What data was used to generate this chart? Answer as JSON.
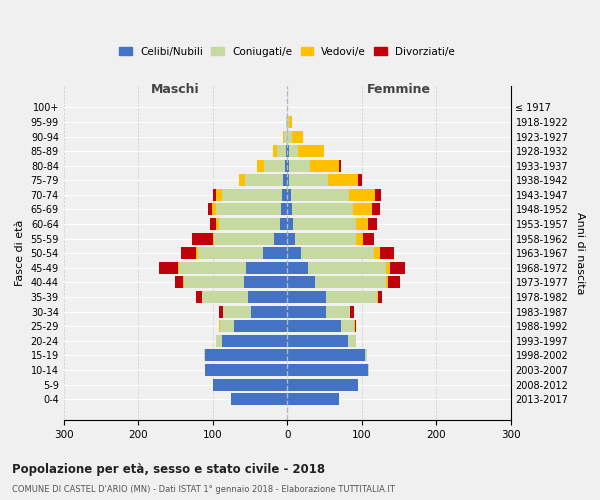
{
  "age_groups": [
    "0-4",
    "5-9",
    "10-14",
    "15-19",
    "20-24",
    "25-29",
    "30-34",
    "35-39",
    "40-44",
    "45-49",
    "50-54",
    "55-59",
    "60-64",
    "65-69",
    "70-74",
    "75-79",
    "80-84",
    "85-89",
    "90-94",
    "95-99",
    "100+"
  ],
  "birth_years": [
    "2013-2017",
    "2008-2012",
    "2003-2007",
    "1998-2002",
    "1993-1997",
    "1988-1992",
    "1983-1987",
    "1978-1982",
    "1973-1977",
    "1968-1972",
    "1963-1967",
    "1958-1962",
    "1953-1957",
    "1948-1952",
    "1943-1947",
    "1938-1942",
    "1933-1937",
    "1928-1932",
    "1923-1927",
    "1918-1922",
    "≤ 1917"
  ],
  "male": {
    "celibi": [
      75,
      100,
      110,
      110,
      88,
      72,
      48,
      52,
      58,
      55,
      32,
      18,
      10,
      8,
      7,
      5,
      3,
      2,
      0,
      0,
      0
    ],
    "coniugati": [
      0,
      0,
      0,
      2,
      8,
      18,
      38,
      62,
      80,
      90,
      88,
      80,
      82,
      88,
      80,
      52,
      28,
      12,
      4,
      2,
      0
    ],
    "vedovi": [
      0,
      0,
      0,
      0,
      0,
      2,
      0,
      1,
      2,
      2,
      2,
      2,
      3,
      5,
      8,
      8,
      10,
      5,
      2,
      0,
      0
    ],
    "divorziati": [
      0,
      0,
      0,
      0,
      0,
      0,
      5,
      8,
      10,
      25,
      20,
      28,
      8,
      5,
      5,
      0,
      0,
      0,
      0,
      0,
      0
    ]
  },
  "female": {
    "nubili": [
      70,
      95,
      108,
      105,
      82,
      72,
      52,
      52,
      38,
      28,
      18,
      10,
      8,
      7,
      5,
      3,
      2,
      2,
      0,
      0,
      0
    ],
    "coniugate": [
      0,
      0,
      2,
      2,
      10,
      18,
      32,
      68,
      95,
      105,
      98,
      82,
      85,
      82,
      78,
      52,
      28,
      12,
      6,
      2,
      0
    ],
    "vedove": [
      0,
      0,
      0,
      0,
      0,
      1,
      1,
      2,
      3,
      5,
      8,
      10,
      15,
      25,
      35,
      40,
      40,
      35,
      15,
      5,
      0
    ],
    "divorziate": [
      0,
      0,
      0,
      0,
      0,
      2,
      5,
      5,
      15,
      20,
      20,
      15,
      12,
      10,
      8,
      5,
      2,
      0,
      0,
      0,
      0
    ]
  },
  "colors": {
    "celibi": "#4472c4",
    "coniugati": "#c5d9a0",
    "vedovi": "#ffc000",
    "divorziati": "#c0000b"
  },
  "xlim": 300,
  "title": "Popolazione per età, sesso e stato civile - 2018",
  "subtitle": "COMUNE DI CASTEL D'ARIO (MN) - Dati ISTAT 1° gennaio 2018 - Elaborazione TUTTITALIA.IT",
  "ylabel_left": "Fasce di età",
  "ylabel_right": "Anni di nascita",
  "xlabel_left": "Maschi",
  "xlabel_right": "Femmine",
  "background_color": "#f0f0f0",
  "grid_color": "#cccccc"
}
